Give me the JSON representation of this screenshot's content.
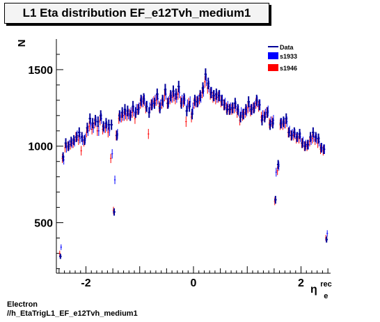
{
  "window": {
    "title": "L1 Eta distribution EF_e12Tvh_medium1"
  },
  "footer": {
    "line1": "Electron",
    "line2": "//h_EtaTrigL1_EF_e12Tvh_medium1"
  },
  "chart_data": {
    "type": "scatter",
    "ylabel": "N",
    "xlabel_main": "η",
    "xlabel_sup": "rec",
    "xlabel_sub": "e",
    "xlim": [
      -2.55,
      2.55
    ],
    "ylim": [
      170,
      1700
    ],
    "x_ticks": [
      -2,
      0,
      2
    ],
    "x_tick_labels": [
      "-2",
      "0",
      "2"
    ],
    "y_ticks": [
      500,
      1000,
      1500
    ],
    "y_tick_labels": [
      "500",
      "1000",
      "1500"
    ],
    "grid": false,
    "legend_position": "top-right",
    "legend": [
      {
        "label": "Data",
        "style": "line",
        "color": "#000099"
      },
      {
        "label": "s1933",
        "style": "box",
        "color": "#0000ff"
      },
      {
        "label": "s1946",
        "style": "box",
        "color": "#ff0000"
      }
    ],
    "colors": {
      "data": "#000099",
      "s1933": "#0000ff",
      "s1946": "#ff0000"
    },
    "x": [
      -2.475,
      -2.425,
      -2.375,
      -2.325,
      -2.275,
      -2.225,
      -2.175,
      -2.125,
      -2.075,
      -2.025,
      -1.975,
      -1.925,
      -1.875,
      -1.825,
      -1.775,
      -1.725,
      -1.675,
      -1.625,
      -1.575,
      -1.525,
      -1.475,
      -1.425,
      -1.375,
      -1.325,
      -1.275,
      -1.225,
      -1.175,
      -1.125,
      -1.075,
      -1.025,
      -0.975,
      -0.925,
      -0.875,
      -0.825,
      -0.775,
      -0.725,
      -0.675,
      -0.625,
      -0.575,
      -0.525,
      -0.475,
      -0.425,
      -0.375,
      -0.325,
      -0.275,
      -0.225,
      -0.175,
      -0.125,
      -0.075,
      -0.025,
      0.025,
      0.075,
      0.125,
      0.175,
      0.225,
      0.275,
      0.325,
      0.375,
      0.425,
      0.475,
      0.525,
      0.575,
      0.625,
      0.675,
      0.725,
      0.775,
      0.825,
      0.875,
      0.925,
      0.975,
      1.025,
      1.075,
      1.125,
      1.175,
      1.225,
      1.275,
      1.325,
      1.375,
      1.425,
      1.475,
      1.525,
      1.575,
      1.625,
      1.675,
      1.725,
      1.775,
      1.825,
      1.875,
      1.925,
      1.975,
      2.025,
      2.075,
      2.125,
      2.175,
      2.225,
      2.275,
      2.325,
      2.375,
      2.425,
      2.475
    ],
    "series": [
      {
        "name": "Data",
        "values": [
          280,
          930,
          1020,
          1000,
          1030,
          1040,
          1060,
          1090,
          1060,
          1040,
          1120,
          1180,
          1150,
          1170,
          1160,
          1200,
          1130,
          1150,
          1140,
          1140,
          570,
          1070,
          1200,
          1220,
          1240,
          1230,
          1200,
          1260,
          1220,
          1240,
          1300,
          1310,
          1260,
          1220,
          1270,
          1280,
          1340,
          1250,
          1300,
          1370,
          1280,
          1330,
          1360,
          1340,
          1390,
          1280,
          1310,
          1230,
          1260,
          1210,
          1300,
          1290,
          1330,
          1380,
          1470,
          1410,
          1350,
          1330,
          1340,
          1330,
          1300,
          1270,
          1240,
          1240,
          1250,
          1280,
          1240,
          1190,
          1210,
          1240,
          1290,
          1240,
          1250,
          1300,
          1270,
          1170,
          1190,
          1220,
          1140,
          1150,
          650,
          880,
          1150,
          1160,
          1180,
          1090,
          1070,
          1090,
          1060,
          1080,
          1020,
          1000,
          1010,
          1060,
          1090,
          1060,
          1050,
          990,
          980,
          390
        ]
      },
      {
        "name": "s1933",
        "values": [
          340,
          910,
          990,
          1010,
          1020,
          1030,
          1070,
          1050,
          1040,
          1050,
          1100,
          1140,
          1120,
          1160,
          1100,
          1180,
          1120,
          1130,
          1100,
          950,
          780,
          1080,
          1190,
          1200,
          1210,
          1210,
          1220,
          1230,
          1240,
          1250,
          1290,
          1300,
          1260,
          1250,
          1280,
          1300,
          1310,
          1270,
          1290,
          1340,
          1290,
          1320,
          1330,
          1320,
          1350,
          1300,
          1300,
          1270,
          1290,
          1250,
          1290,
          1300,
          1320,
          1360,
          1430,
          1390,
          1350,
          1330,
          1320,
          1330,
          1300,
          1280,
          1260,
          1250,
          1250,
          1260,
          1230,
          1220,
          1210,
          1230,
          1260,
          1240,
          1260,
          1290,
          1270,
          1200,
          1210,
          1230,
          1160,
          1170,
          830,
          870,
          1150,
          1150,
          1160,
          1100,
          1080,
          1080,
          1060,
          1060,
          1030,
          1010,
          1010,
          1040,
          1060,
          1050,
          1030,
          990,
          980,
          430
        ]
      },
      {
        "name": "s1946",
        "values": [
          300,
          920,
          990,
          1000,
          1010,
          1020,
          1060,
          1040,
          970,
          1030,
          1090,
          1130,
          1110,
          1150,
          1100,
          1170,
          1110,
          1120,
          1090,
          920,
          580,
          1070,
          1180,
          1190,
          1200,
          1200,
          1210,
          1220,
          1180,
          1240,
          1280,
          1290,
          1250,
          1080,
          1270,
          1290,
          1300,
          1260,
          1280,
          1330,
          1280,
          1310,
          1320,
          1310,
          1340,
          1290,
          1290,
          1160,
          1280,
          1190,
          1280,
          1290,
          1310,
          1350,
          1420,
          1380,
          1340,
          1320,
          1310,
          1320,
          1290,
          1270,
          1250,
          1240,
          1240,
          1250,
          1220,
          1170,
          1200,
          1220,
          1250,
          1230,
          1250,
          1280,
          1260,
          1190,
          1200,
          1220,
          1150,
          1160,
          640,
          840,
          1140,
          1140,
          1150,
          1090,
          1070,
          1070,
          1050,
          1050,
          1020,
          1000,
          1000,
          1030,
          1050,
          1040,
          1020,
          980,
          970,
          400
        ]
      }
    ]
  }
}
